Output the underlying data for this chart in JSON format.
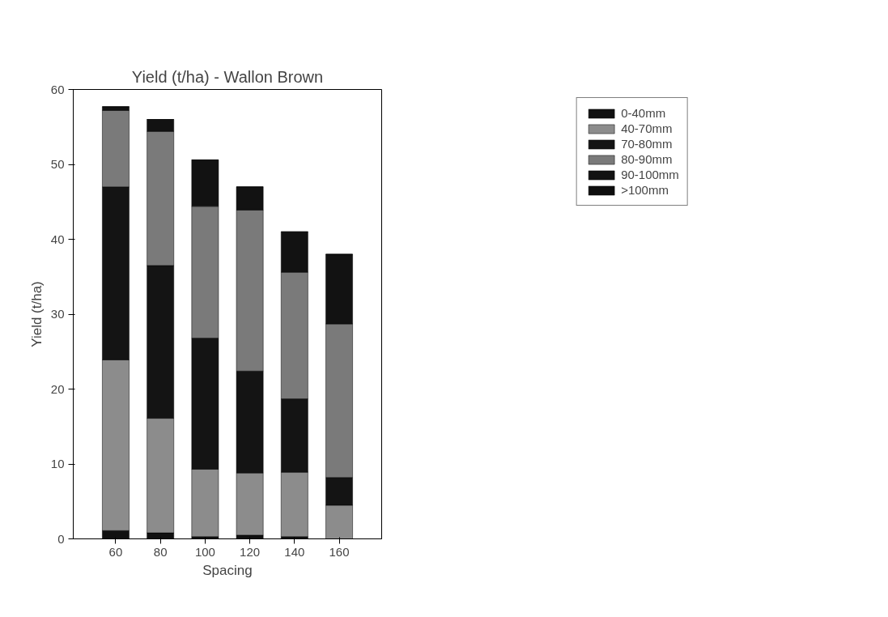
{
  "chart_data": {
    "type": "bar",
    "title": "Yield (t/ha) - Wallon Brown",
    "xlabel": "Spacing",
    "ylabel": "Yield (t/ha)",
    "categories": [
      "60",
      "80",
      "100",
      "120",
      "140",
      "160"
    ],
    "stacked": true,
    "ylim": [
      0,
      60
    ],
    "yticks": [
      0,
      10,
      20,
      30,
      40,
      50,
      60
    ],
    "grid": false,
    "legend": "top right",
    "series": [
      {
        "name": "0-40mm",
        "color": "#111111",
        "values": [
          1.1,
          0.8,
          0.3,
          0.5,
          0.3,
          0
        ]
      },
      {
        "name": "40-70mm",
        "color": "#8c8c8c",
        "values": [
          22.8,
          15.3,
          9.0,
          8.3,
          8.6,
          4.5
        ]
      },
      {
        "name": "70-80mm",
        "color": "#141414",
        "values": [
          23.1,
          20.4,
          17.5,
          13.6,
          9.8,
          3.7
        ]
      },
      {
        "name": "80-90mm",
        "color": "#7a7a7a",
        "values": [
          10.2,
          17.9,
          17.6,
          21.5,
          16.9,
          20.5
        ]
      },
      {
        "name": "90-100mm",
        "color": "#121212",
        "values": [
          0.5,
          1.6,
          6.2,
          3.1,
          5.4,
          9.3
        ]
      },
      {
        "name": ">100mm",
        "color": "#0e0e0e",
        "values": [
          0,
          0,
          0,
          0,
          0,
          0
        ]
      }
    ]
  }
}
